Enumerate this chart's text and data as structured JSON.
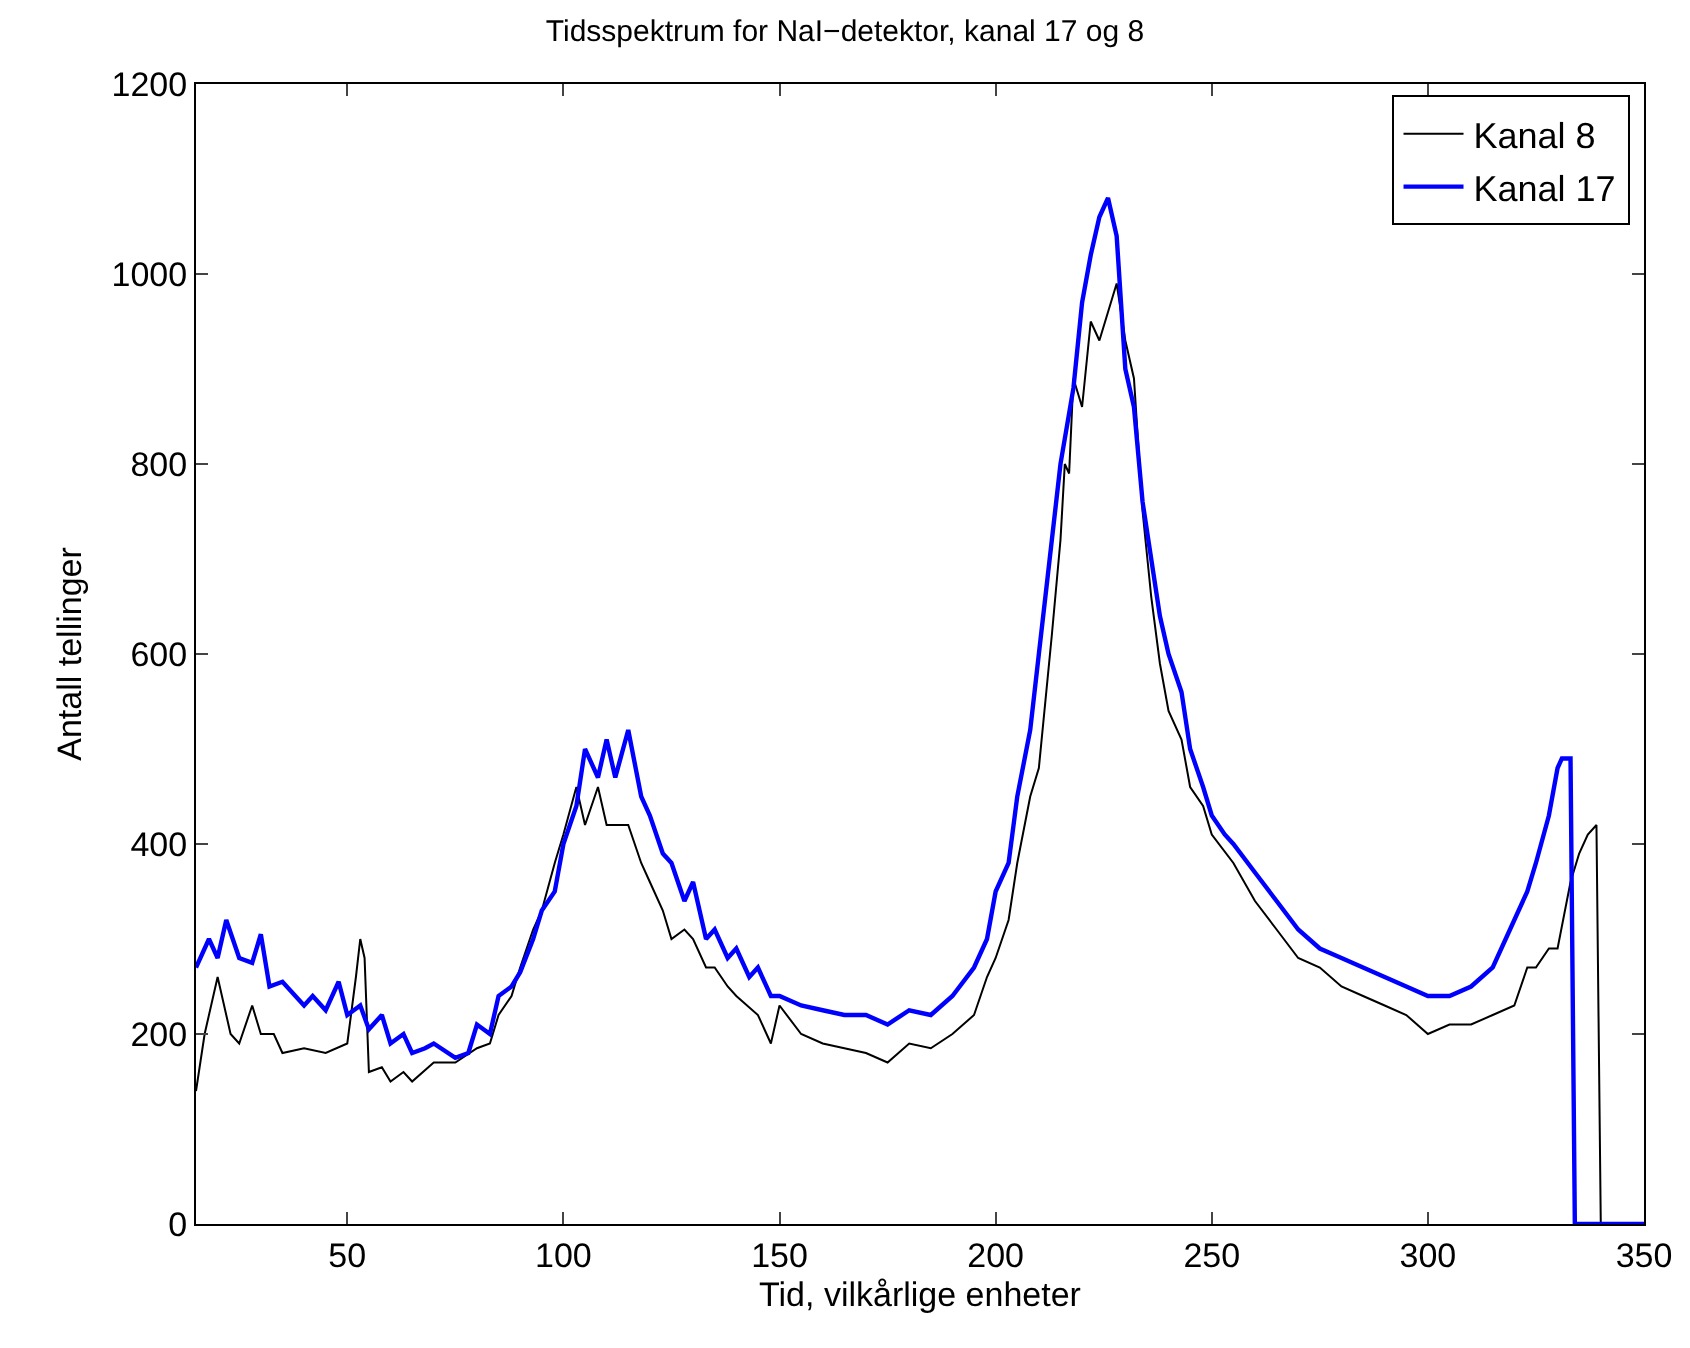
{
  "chart_data": {
    "type": "line",
    "title": "Tidsspektrum for NaI−detektor, kanal 17 og 8",
    "xlabel": "Tid, vilkårlige enheter",
    "ylabel": "Antall tellinger",
    "xlim": [
      15,
      350
    ],
    "xticks": [
      50,
      100,
      150,
      200,
      250,
      300,
      350
    ],
    "ylim": [
      0,
      1200
    ],
    "yticks": [
      0,
      200,
      400,
      600,
      800,
      1000,
      1200
    ],
    "grid": false,
    "legend": "top right",
    "marker": "none",
    "line_style": "solid",
    "series": [
      {
        "name": "Kanal 8",
        "color": "#000000",
        "x": [
          15,
          17,
          20,
          23,
          25,
          28,
          30,
          33,
          35,
          40,
          45,
          50,
          52,
          53,
          54,
          55,
          58,
          60,
          63,
          65,
          70,
          75,
          80,
          83,
          85,
          88,
          90,
          93,
          95,
          98,
          100,
          103,
          105,
          108,
          110,
          113,
          115,
          118,
          120,
          123,
          125,
          128,
          130,
          133,
          135,
          138,
          140,
          145,
          148,
          150,
          155,
          160,
          165,
          170,
          175,
          180,
          185,
          190,
          195,
          198,
          200,
          203,
          205,
          208,
          210,
          213,
          215,
          216,
          217,
          218,
          220,
          222,
          224,
          226,
          228,
          230,
          232,
          234,
          236,
          238,
          240,
          243,
          245,
          248,
          250,
          255,
          260,
          265,
          270,
          275,
          280,
          285,
          290,
          295,
          300,
          305,
          310,
          315,
          320,
          323,
          325,
          328,
          330,
          333,
          335,
          337,
          339,
          340,
          350
        ],
        "values": [
          140,
          200,
          260,
          200,
          190,
          230,
          200,
          200,
          180,
          185,
          180,
          190,
          260,
          300,
          280,
          160,
          165,
          150,
          160,
          150,
          170,
          170,
          185,
          190,
          220,
          240,
          270,
          310,
          330,
          380,
          410,
          460,
          420,
          460,
          420,
          420,
          420,
          380,
          360,
          330,
          300,
          310,
          300,
          270,
          270,
          250,
          240,
          220,
          190,
          230,
          200,
          190,
          185,
          180,
          170,
          190,
          185,
          200,
          220,
          260,
          280,
          320,
          380,
          450,
          480,
          620,
          720,
          800,
          790,
          890,
          860,
          950,
          930,
          960,
          990,
          930,
          890,
          750,
          660,
          590,
          540,
          510,
          460,
          440,
          410,
          380,
          340,
          310,
          280,
          270,
          250,
          240,
          230,
          220,
          200,
          210,
          210,
          220,
          230,
          270,
          270,
          290,
          290,
          360,
          390,
          410,
          420,
          0,
          0
        ]
      },
      {
        "name": "Kanal 17",
        "color": "#0000ff",
        "x": [
          15,
          18,
          20,
          22,
          25,
          28,
          30,
          32,
          35,
          40,
          42,
          45,
          48,
          50,
          53,
          55,
          58,
          60,
          63,
          65,
          68,
          70,
          75,
          78,
          80,
          83,
          85,
          88,
          90,
          93,
          95,
          98,
          100,
          103,
          105,
          108,
          110,
          112,
          115,
          118,
          120,
          123,
          125,
          128,
          130,
          133,
          135,
          138,
          140,
          143,
          145,
          148,
          150,
          155,
          160,
          165,
          170,
          175,
          180,
          185,
          190,
          195,
          198,
          200,
          203,
          205,
          208,
          210,
          212,
          215,
          218,
          220,
          222,
          224,
          226,
          228,
          230,
          232,
          234,
          236,
          238,
          240,
          243,
          245,
          248,
          250,
          253,
          255,
          260,
          265,
          270,
          275,
          280,
          285,
          290,
          295,
          300,
          305,
          310,
          315,
          318,
          320,
          323,
          325,
          328,
          330,
          331,
          333,
          334,
          350
        ],
        "values": [
          270,
          300,
          280,
          320,
          280,
          275,
          305,
          250,
          255,
          230,
          240,
          225,
          255,
          220,
          230,
          205,
          220,
          190,
          200,
          180,
          185,
          190,
          175,
          180,
          210,
          200,
          240,
          250,
          265,
          300,
          330,
          350,
          400,
          440,
          500,
          470,
          510,
          470,
          520,
          450,
          430,
          390,
          380,
          340,
          360,
          300,
          310,
          280,
          290,
          260,
          270,
          240,
          240,
          230,
          225,
          220,
          220,
          210,
          225,
          220,
          240,
          270,
          300,
          350,
          380,
          450,
          520,
          600,
          680,
          800,
          880,
          970,
          1020,
          1060,
          1080,
          1040,
          900,
          860,
          760,
          700,
          640,
          600,
          560,
          500,
          460,
          430,
          410,
          400,
          370,
          340,
          310,
          290,
          280,
          270,
          260,
          250,
          240,
          240,
          250,
          270,
          300,
          320,
          350,
          380,
          430,
          480,
          490,
          490,
          0,
          0
        ]
      }
    ]
  }
}
